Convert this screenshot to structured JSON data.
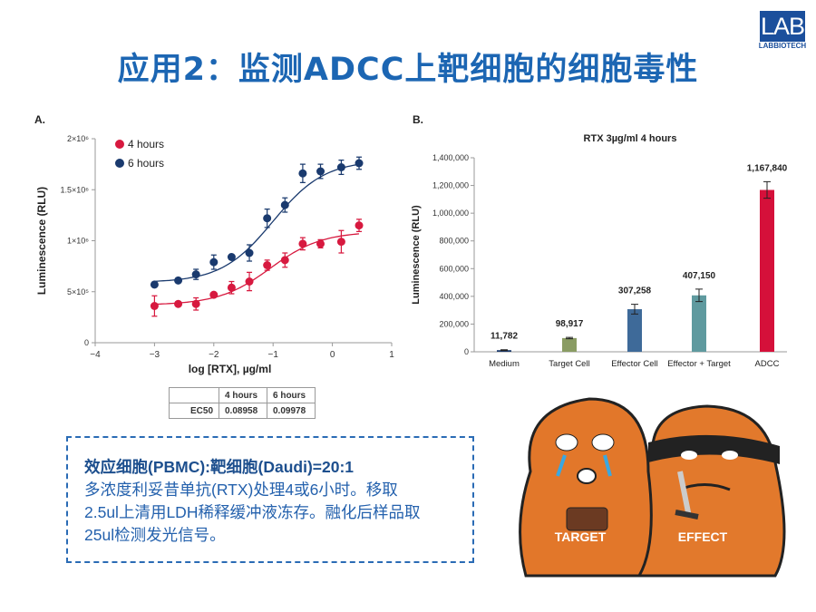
{
  "title": "应用2：监测ADCC上靶细胞的细胞毒性",
  "logo": {
    "main": "LAB",
    "sub": "LABBIOTECH"
  },
  "chart_data": [
    {
      "panel": "A.",
      "type": "line",
      "xlabel": "log [RTX], µg/ml",
      "ylabel": "Luminescence (RLU)",
      "xlim": [
        -4,
        1
      ],
      "ylim": [
        0,
        2000000
      ],
      "xticks": [
        "−4",
        "−3",
        "−2",
        "−1",
        "0",
        "1"
      ],
      "yticks": [
        "0",
        "5×10⁵",
        "1×10⁶",
        "1.5×10⁶",
        "2×10⁶"
      ],
      "legend_placement": "top-left",
      "series": [
        {
          "name": "4 hours",
          "color": "#d7193f",
          "x": [
            -3,
            -2.6,
            -2.3,
            -2,
            -1.7,
            -1.4,
            -1.1,
            -0.8,
            -0.5,
            -0.2,
            0.15,
            0.45
          ],
          "y": [
            360000,
            380000,
            380000,
            470000,
            540000,
            600000,
            760000,
            810000,
            970000,
            970000,
            990000,
            1150000
          ],
          "err": [
            100000,
            20000,
            60000,
            20000,
            60000,
            90000,
            50000,
            70000,
            60000,
            40000,
            110000,
            60000
          ],
          "fit": {
            "bottom": 370000,
            "top": 1090000,
            "log_ec50": -1.048,
            "hill": 1
          }
        },
        {
          "name": "6 hours",
          "color": "#1a3a6e",
          "x": [
            -3,
            -2.6,
            -2.3,
            -2,
            -1.7,
            -1.4,
            -1.1,
            -0.8,
            -0.5,
            -0.2,
            0.15,
            0.45
          ],
          "y": [
            570000,
            610000,
            670000,
            790000,
            840000,
            880000,
            1220000,
            1350000,
            1660000,
            1680000,
            1720000,
            1760000
          ],
          "err": [
            20000,
            20000,
            50000,
            70000,
            20000,
            80000,
            90000,
            70000,
            90000,
            70000,
            70000,
            60000
          ],
          "fit": {
            "bottom": 590000,
            "top": 1790000,
            "log_ec50": -1.001,
            "hill": 1
          }
        }
      ],
      "table": {
        "headers": [
          "",
          "4 hours",
          "6 hours"
        ],
        "rows": [
          [
            "EC50",
            "0.08958",
            "0.09978"
          ]
        ]
      }
    },
    {
      "panel": "B.",
      "type": "bar",
      "title": "RTX 3µg/ml 4 hours",
      "ylabel": "Luminescence (RLU)",
      "ylim": [
        0,
        1400000
      ],
      "yticks": [
        "0",
        "200,000",
        "400,000",
        "600,000",
        "800,000",
        "1,000,000",
        "1,200,000",
        "1,400,000"
      ],
      "categories": [
        "Medium",
        "Target Cell",
        "Effector Cell",
        "Effector + Target",
        "ADCC"
      ],
      "values": [
        11782,
        98917,
        307258,
        407150,
        1167840
      ],
      "labels": [
        "11,782",
        "98,917",
        "307,258",
        "407,150",
        "1,167,840"
      ],
      "err": [
        3000,
        5000,
        35000,
        45000,
        60000
      ],
      "colors": [
        "#1d3c6e",
        "#8a9c63",
        "#3e6a99",
        "#5f9a9f",
        "#d5103a"
      ]
    }
  ],
  "textbox": {
    "line1": "效应细胞(PBMC):靶细胞(Daudi)=20:1",
    "line2": "多浓度利妥昔单抗(RTX)处理4或6小时。移取",
    "line3": "2.5ul上清用LDH稀释缓冲液冻存。融化后样品取",
    "line4": "25ul检测发光信号。"
  },
  "cartoon": {
    "left_label": "TARGET",
    "right_label": "EFFECT"
  }
}
